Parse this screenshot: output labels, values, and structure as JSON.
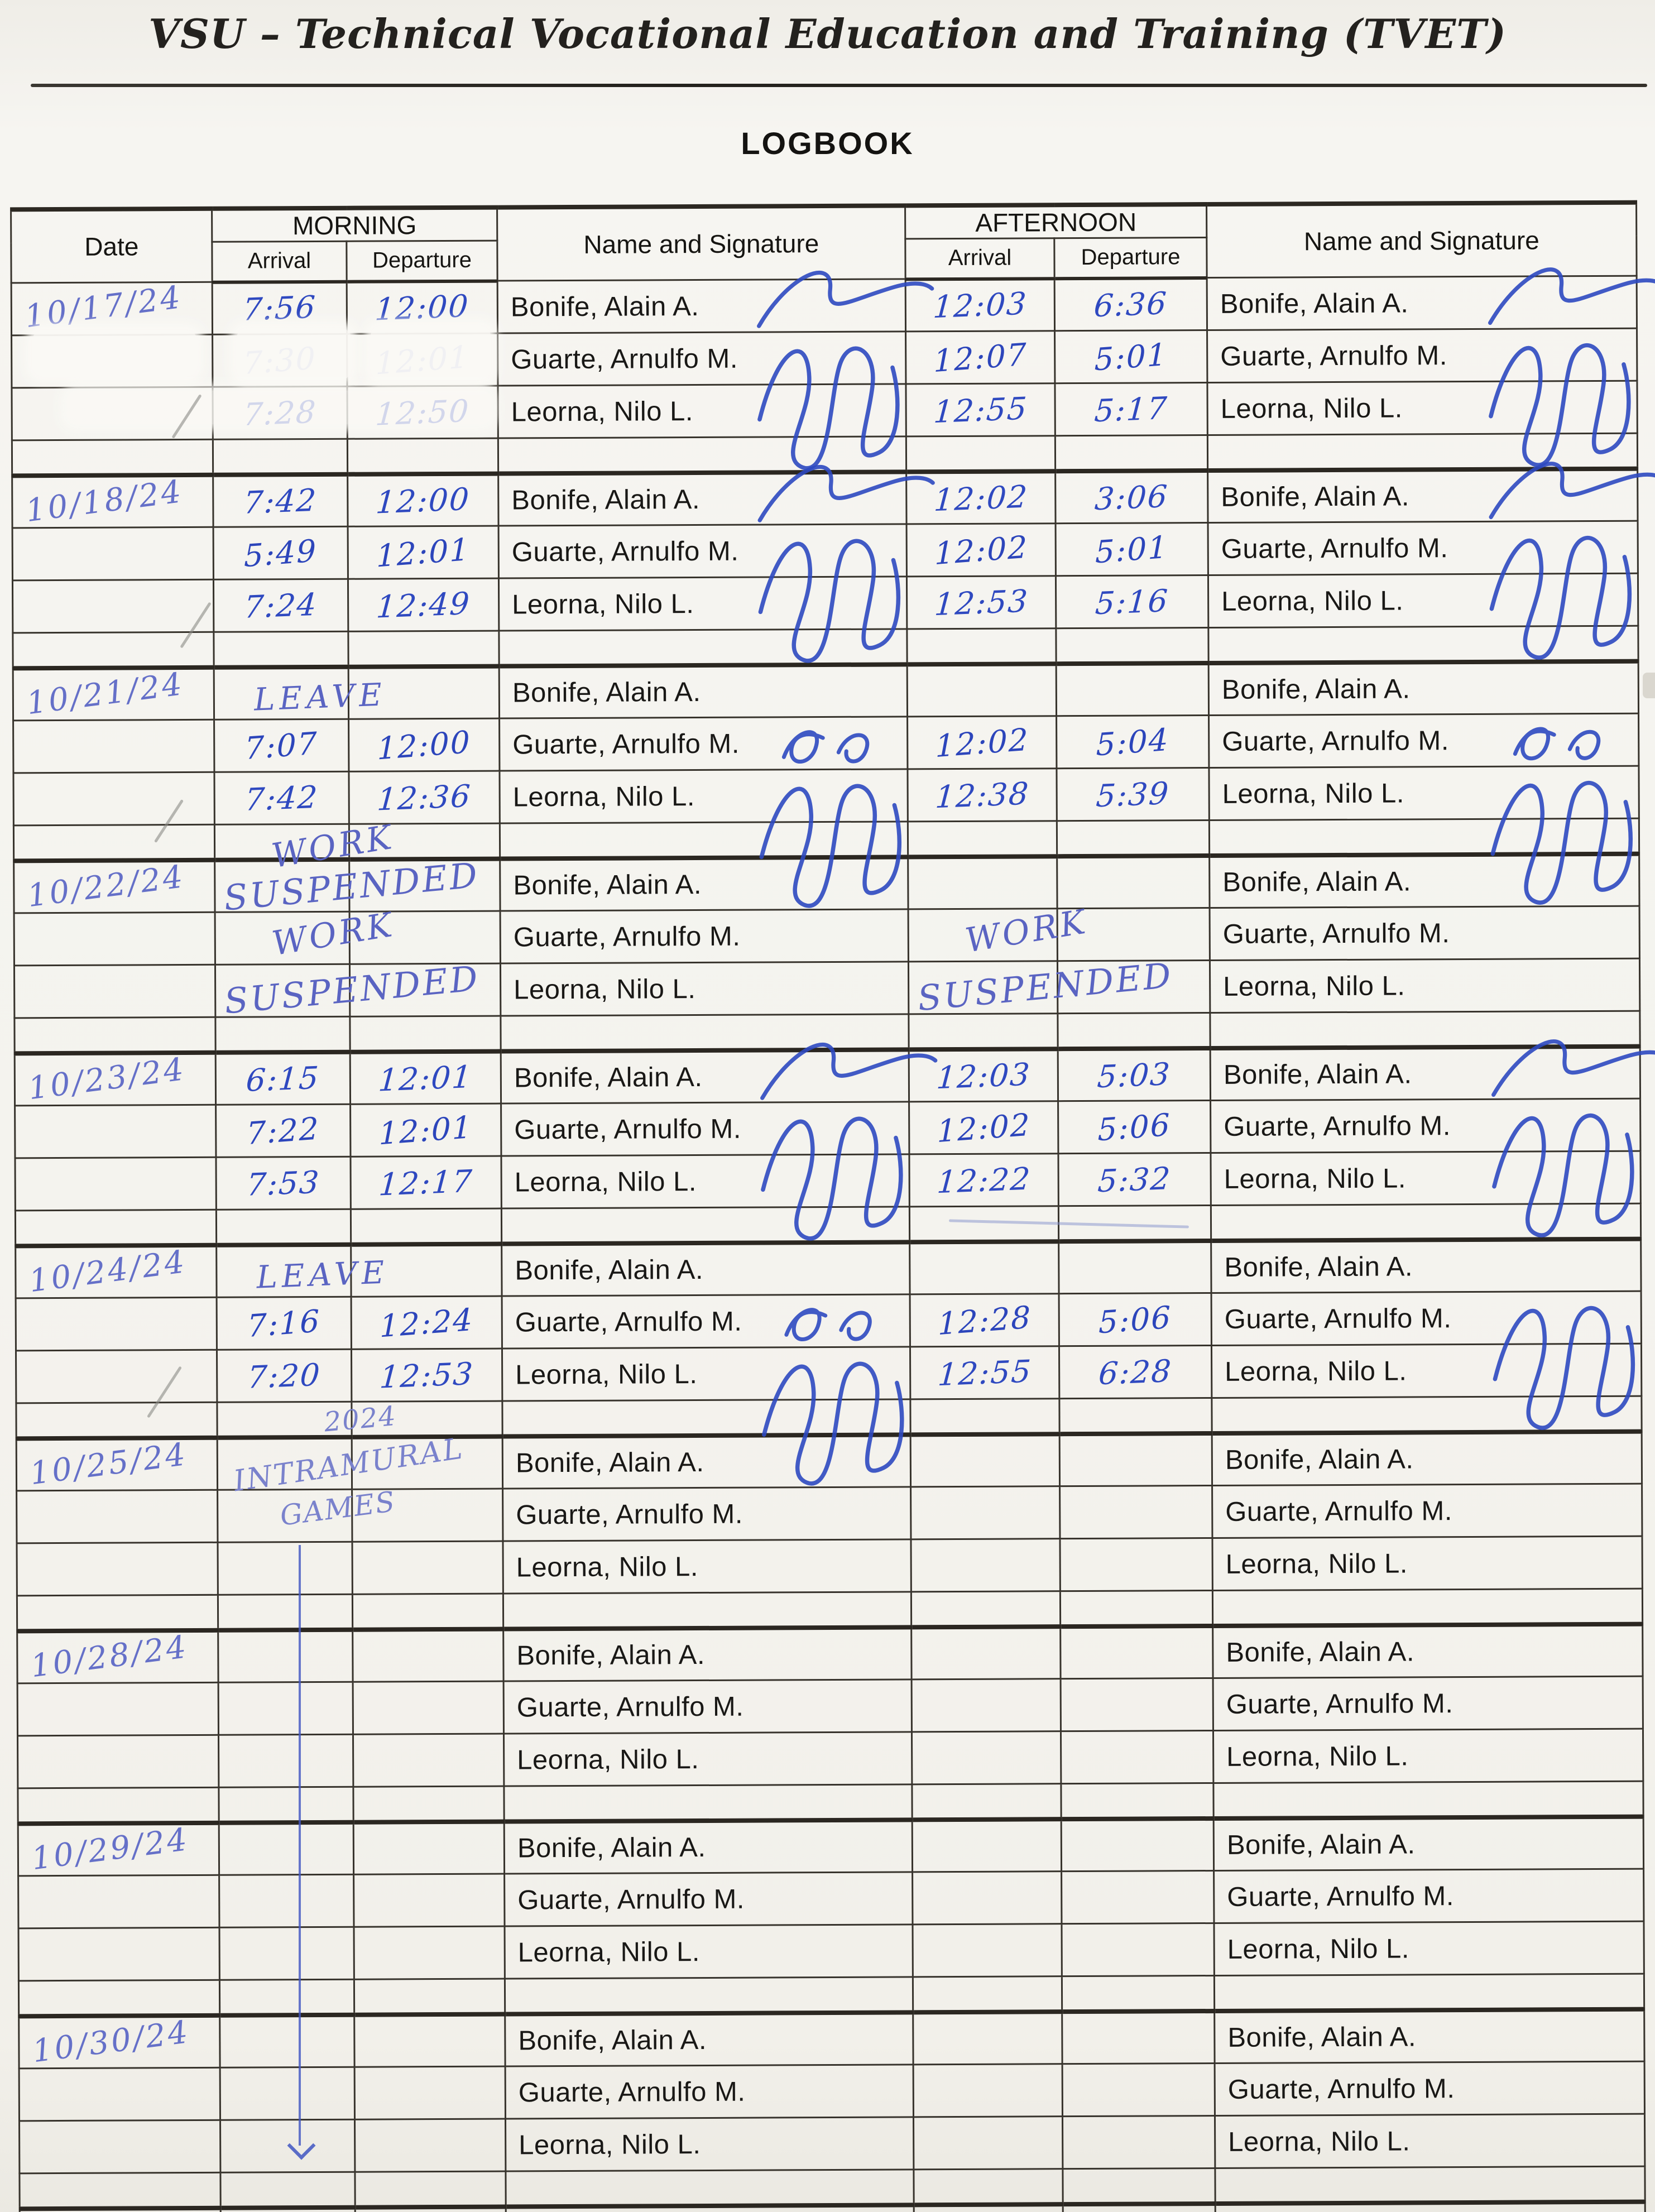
{
  "header": {
    "title": "VSU – Technical Vocational Education and Training (TVET)",
    "doc_title": "LOGBOOK"
  },
  "ink_color": "#2c45bb",
  "table": {
    "headers": {
      "date": "Date",
      "morning": "MORNING",
      "afternoon": "AFTERNOON",
      "arrival": "Arrival",
      "departure": "Departure",
      "name_signature": "Name and Signature"
    },
    "blocks": [
      {
        "date": "10/17/24",
        "rows": [
          {
            "type": "entry",
            "name": "Bonife, Alain A.",
            "m_arr": "7:56",
            "m_dep": "12:00",
            "a_arr": "12:03",
            "a_dep": "6:36",
            "m_sig": "flourish",
            "a_sig": "flourish"
          },
          {
            "type": "entry",
            "name": "Guarte, Arnulfo M.",
            "m_arr": "7:30",
            "m_dep": "12:01",
            "a_arr": "12:07",
            "a_dep": "5:01",
            "m_sig": "loops",
            "a_sig": "loops"
          },
          {
            "type": "entry",
            "name": "Leorna, Nilo L.",
            "m_arr": "7:28",
            "m_dep": "12:50",
            "a_arr": "12:55",
            "a_dep": "5:17"
          },
          {
            "type": "spacer"
          }
        ]
      },
      {
        "date": "10/18/24",
        "rows": [
          {
            "type": "entry",
            "name": "Bonife, Alain A.",
            "m_arr": "7:42",
            "m_dep": "12:00",
            "a_arr": "12:02",
            "a_dep": "3:06",
            "m_sig": "flourish",
            "a_sig": "flourish"
          },
          {
            "type": "entry",
            "name": "Guarte, Arnulfo M.",
            "m_arr": "5:49",
            "m_dep": "12:01",
            "a_arr": "12:02",
            "a_dep": "5:01",
            "m_sig": "loops",
            "a_sig": "loops"
          },
          {
            "type": "entry",
            "name": "Leorna, Nilo L.",
            "m_arr": "7:24",
            "m_dep": "12:49",
            "a_arr": "12:53",
            "a_dep": "5:16"
          },
          {
            "type": "spacer"
          }
        ]
      },
      {
        "date": "10/21/24",
        "rows": [
          {
            "type": "entry",
            "name": "Bonife, Alain A.",
            "m_note": "LEAVE"
          },
          {
            "type": "entry",
            "name": "Guarte, Arnulfo M.",
            "m_arr": "7:07",
            "m_dep": "12:00",
            "a_arr": "12:02",
            "a_dep": "5:04",
            "m_sig": "small",
            "a_sig": "small"
          },
          {
            "type": "entry",
            "name": "Leorna, Nilo L.",
            "m_arr": "7:42",
            "m_dep": "12:36",
            "a_arr": "12:38",
            "a_dep": "5:39",
            "m_sig": "loops",
            "a_sig": "loops"
          },
          {
            "type": "spacer",
            "m_note": "WORK"
          }
        ]
      },
      {
        "date": "10/22/24",
        "rows": [
          {
            "type": "entry",
            "name": "Bonife, Alain A.",
            "m_note": "SUSPENDED"
          },
          {
            "type": "entry",
            "name": "Guarte, Arnulfo M.",
            "m_note": "WORK",
            "a_note": "WORK"
          },
          {
            "type": "entry",
            "name": "Leorna, Nilo L.",
            "m_note": "SUSPENDED",
            "a_note": "SUSPENDED"
          },
          {
            "type": "spacer"
          }
        ]
      },
      {
        "date": "10/23/24",
        "rows": [
          {
            "type": "entry",
            "name": "Bonife, Alain A.",
            "m_arr": "6:15",
            "m_dep": "12:01",
            "a_arr": "12:03",
            "a_dep": "5:03",
            "m_sig": "flourish",
            "a_sig": "flourish"
          },
          {
            "type": "entry",
            "name": "Guarte, Arnulfo M.",
            "m_arr": "7:22",
            "m_dep": "12:01",
            "a_arr": "12:02",
            "a_dep": "5:06",
            "m_sig": "loops",
            "a_sig": "loops"
          },
          {
            "type": "entry",
            "name": "Leorna, Nilo L.",
            "m_arr": "7:53",
            "m_dep": "12:17",
            "a_arr": "12:22",
            "a_dep": "5:32"
          },
          {
            "type": "spacer"
          }
        ]
      },
      {
        "date": "10/24/24",
        "rows": [
          {
            "type": "entry",
            "name": "Bonife, Alain A.",
            "m_note": "LEAVE"
          },
          {
            "type": "entry",
            "name": "Guarte, Arnulfo M.",
            "m_arr": "7:16",
            "m_dep": "12:24",
            "a_arr": "12:28",
            "a_dep": "5:06",
            "m_sig": "small",
            "a_sig": "loops"
          },
          {
            "type": "entry",
            "name": "Leorna, Nilo L.",
            "m_arr": "7:20",
            "m_dep": "12:53",
            "a_arr": "12:55",
            "a_dep": "6:28",
            "m_sig": "loops"
          },
          {
            "type": "spacer",
            "m_note": "2024"
          }
        ]
      },
      {
        "date": "10/25/24",
        "rows": [
          {
            "type": "entry",
            "name": "Bonife, Alain A.",
            "m_note": "INTRAMURAL"
          },
          {
            "type": "entry",
            "name": "Guarte, Arnulfo M.",
            "m_note": "GAMES"
          },
          {
            "type": "entry",
            "name": "Leorna, Nilo L."
          },
          {
            "type": "spacer"
          }
        ]
      },
      {
        "date": "10/28/24",
        "rows": [
          {
            "type": "entry",
            "name": "Bonife, Alain A."
          },
          {
            "type": "entry",
            "name": "Guarte, Arnulfo M."
          },
          {
            "type": "entry",
            "name": "Leorna, Nilo L."
          },
          {
            "type": "spacer"
          }
        ]
      },
      {
        "date": "10/29/24",
        "rows": [
          {
            "type": "entry",
            "name": "Bonife, Alain A."
          },
          {
            "type": "entry",
            "name": "Guarte, Arnulfo M."
          },
          {
            "type": "entry",
            "name": "Leorna, Nilo L."
          },
          {
            "type": "spacer"
          }
        ]
      },
      {
        "date": "10/30/24",
        "rows": [
          {
            "type": "entry",
            "name": "Bonife, Alain A."
          },
          {
            "type": "entry",
            "name": "Guarte, Arnulfo M."
          },
          {
            "type": "entry",
            "name": "Leorna, Nilo L."
          },
          {
            "type": "spacer"
          }
        ]
      }
    ]
  }
}
